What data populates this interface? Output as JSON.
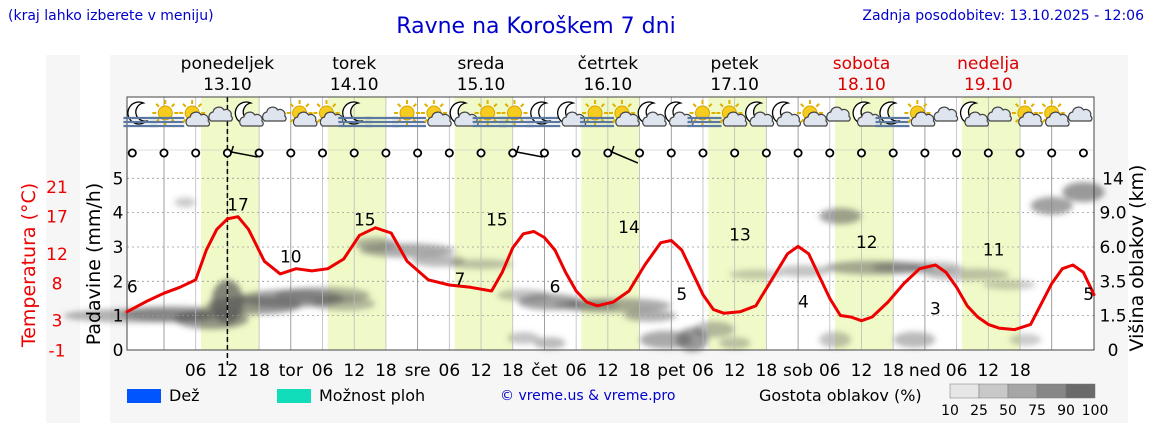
{
  "header": {
    "left_note": "(kraj lahko izberete v meniju)",
    "title": "Ravne na Koroškem 7 dni",
    "updated": "Zadnja posodobitev: 13.10.2025 - 12:06"
  },
  "days": [
    {
      "name": "ponedeljek",
      "date": "13.10",
      "weekend": false,
      "abbr": ""
    },
    {
      "name": "torek",
      "date": "14.10",
      "weekend": false,
      "abbr": "tor"
    },
    {
      "name": "sreda",
      "date": "15.10",
      "weekend": false,
      "abbr": "sre"
    },
    {
      "name": "četrtek",
      "date": "16.10",
      "weekend": false,
      "abbr": "čet"
    },
    {
      "name": "petek",
      "date": "17.10",
      "weekend": false,
      "abbr": "pet"
    },
    {
      "name": "sobota",
      "date": "18.10",
      "weekend": true,
      "abbr": "sob"
    },
    {
      "name": "nedelja",
      "date": "19.10",
      "weekend": true,
      "abbr": "ned"
    }
  ],
  "hour_ticks": [
    "06",
    "12",
    "18"
  ],
  "weather_icons": [
    "moon-fog",
    "sun-fog",
    "sun-cloud",
    "cloud",
    "moon-cloud",
    "cloud",
    "sun-cloud",
    "sun-cloud",
    "moon-fog",
    "fog",
    "sun-fog",
    "sun-cloud",
    "moon-cloud",
    "sun-fog",
    "sun-fog",
    "moon-fog",
    "moon-cloud",
    "sun-fog",
    "sun-cloud",
    "moon-cloud",
    "moon-cloud",
    "sun-fog",
    "sun-cloud",
    "moon-cloud",
    "moon-cloud",
    "sun-cloud",
    "cloud",
    "moon-cloud",
    "moon-fog",
    "sun-cloud",
    "cloud",
    "moon-cloud",
    "cloud",
    "sun-cloud",
    "sun-cloud",
    "cloud"
  ],
  "wind_arrows": [
    {
      "hour": 12,
      "dir": "E"
    },
    {
      "hour": 66,
      "dir": "E"
    },
    {
      "hour": 84,
      "dir": "SE"
    }
  ],
  "chart_data": {
    "type": "line",
    "x_unit": "hours since 13.10 00:00",
    "xlim": [
      -7,
      176
    ],
    "now_marker_hour": 12,
    "left_axis_precip": {
      "label": "Padavine (mm/h)",
      "ylim": [
        0,
        5.3
      ],
      "ticks": [
        0,
        1,
        2,
        3,
        4,
        5
      ]
    },
    "left_axis_temp": {
      "label": "Temperatura (°C)",
      "ticks": [
        -1,
        3,
        8,
        12,
        17,
        21
      ]
    },
    "right_axis_cloud": {
      "label": "Višina oblakov (km)",
      "ticks": [
        "0",
        "1.5",
        "3.5",
        "6.0",
        "9.0",
        "14"
      ]
    },
    "series": [
      {
        "name": "Temperatura (°C)",
        "color": "#ee0000",
        "x": [
          -7,
          -3,
          0,
          3,
          6,
          8,
          10,
          12,
          14,
          16,
          19,
          22,
          25,
          28,
          31,
          34,
          37,
          40,
          43,
          46,
          50,
          54,
          58,
          62,
          64,
          66,
          68,
          70,
          72,
          74,
          76,
          78,
          80,
          82,
          85,
          88,
          91,
          94,
          96,
          98,
          100,
          102,
          104,
          106,
          109,
          112,
          115,
          118,
          120,
          122,
          124,
          126,
          128,
          130,
          132,
          134,
          137,
          140,
          143,
          146,
          148,
          150,
          152,
          154,
          156,
          158,
          161,
          164,
          168,
          170,
          172,
          174,
          176
        ],
        "y": [
          4.2,
          5.7,
          6.7,
          7.5,
          8.5,
          12.5,
          15.3,
          16.7,
          17.0,
          15.3,
          11.0,
          9.3,
          10.0,
          9.7,
          10.0,
          11.3,
          14.5,
          15.5,
          14.8,
          11.0,
          8.5,
          7.8,
          7.5,
          7.0,
          9.5,
          12.8,
          14.7,
          15.0,
          14.2,
          12.5,
          9.5,
          7.0,
          5.5,
          5.0,
          5.5,
          7.0,
          10.5,
          13.5,
          13.8,
          12.5,
          9.5,
          6.5,
          4.5,
          4.0,
          4.2,
          5.0,
          8.5,
          12.0,
          13.0,
          12.0,
          9.0,
          6.0,
          3.7,
          3.5,
          3.0,
          3.5,
          5.5,
          8.0,
          10.0,
          10.5,
          9.5,
          7.5,
          5.0,
          3.5,
          2.5,
          2.0,
          1.8,
          2.5,
          8.0,
          10.0,
          10.5,
          9.5,
          6.5
        ]
      },
      {
        "name": "Dež",
        "color": "#0055ff",
        "values": []
      },
      {
        "name": "Možnost ploh",
        "color": "#11ddbb",
        "values": []
      }
    ],
    "temp_labels": [
      {
        "hour": -6,
        "value": "6"
      },
      {
        "hour": 14,
        "value": "17"
      },
      {
        "hour": 24,
        "value": "10"
      },
      {
        "hour": 38,
        "value": "15"
      },
      {
        "hour": 56,
        "value": "7"
      },
      {
        "hour": 63,
        "value": "15"
      },
      {
        "hour": 74,
        "value": "6"
      },
      {
        "hour": 88,
        "value": "14"
      },
      {
        "hour": 98,
        "value": "5"
      },
      {
        "hour": 109,
        "value": "13"
      },
      {
        "hour": 121,
        "value": "4"
      },
      {
        "hour": 133,
        "value": "12"
      },
      {
        "hour": 146,
        "value": "3"
      },
      {
        "hour": 157,
        "value": "11"
      },
      {
        "hour": 175,
        "value": "5"
      }
    ],
    "legend": {
      "rain": "Dež",
      "showers": "Možnost ploh",
      "cloud_density": "Gostota oblakov (%)",
      "density_steps": [
        "10",
        "25",
        "50",
        "75",
        "90",
        "100"
      ]
    },
    "credit": "© vreme.us & vreme.pro"
  },
  "colors": {
    "temperature": "#ee0000",
    "title": "#0000cc",
    "weekend": "#dd0000",
    "day_band": "#f0fac8",
    "rain": "#0055ff",
    "showers": "#11ddbb"
  }
}
